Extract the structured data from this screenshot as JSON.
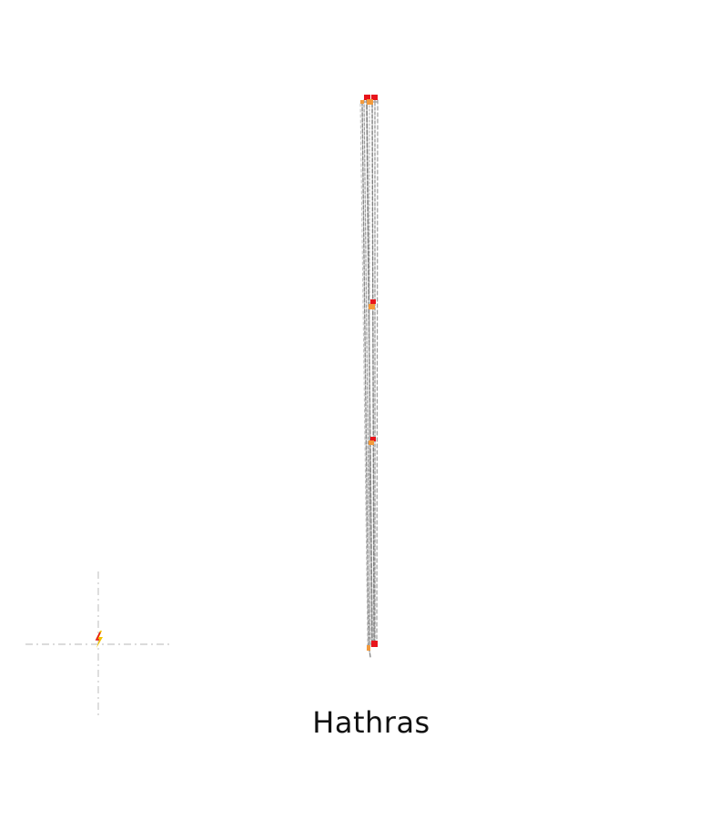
{
  "place_name": "Hathras",
  "colors": {
    "route_line": "#7f7f7f",
    "route_line_light": "#b5b5b5",
    "stop_red": "#e8141b",
    "stop_orange": "#f39a3b",
    "crosshair": "#cfcfcf",
    "marker_yellow": "#f2c200"
  },
  "icons": {
    "location_marker": "lightning-marker-icon",
    "crosshair": "crosshair-guide-icon"
  }
}
